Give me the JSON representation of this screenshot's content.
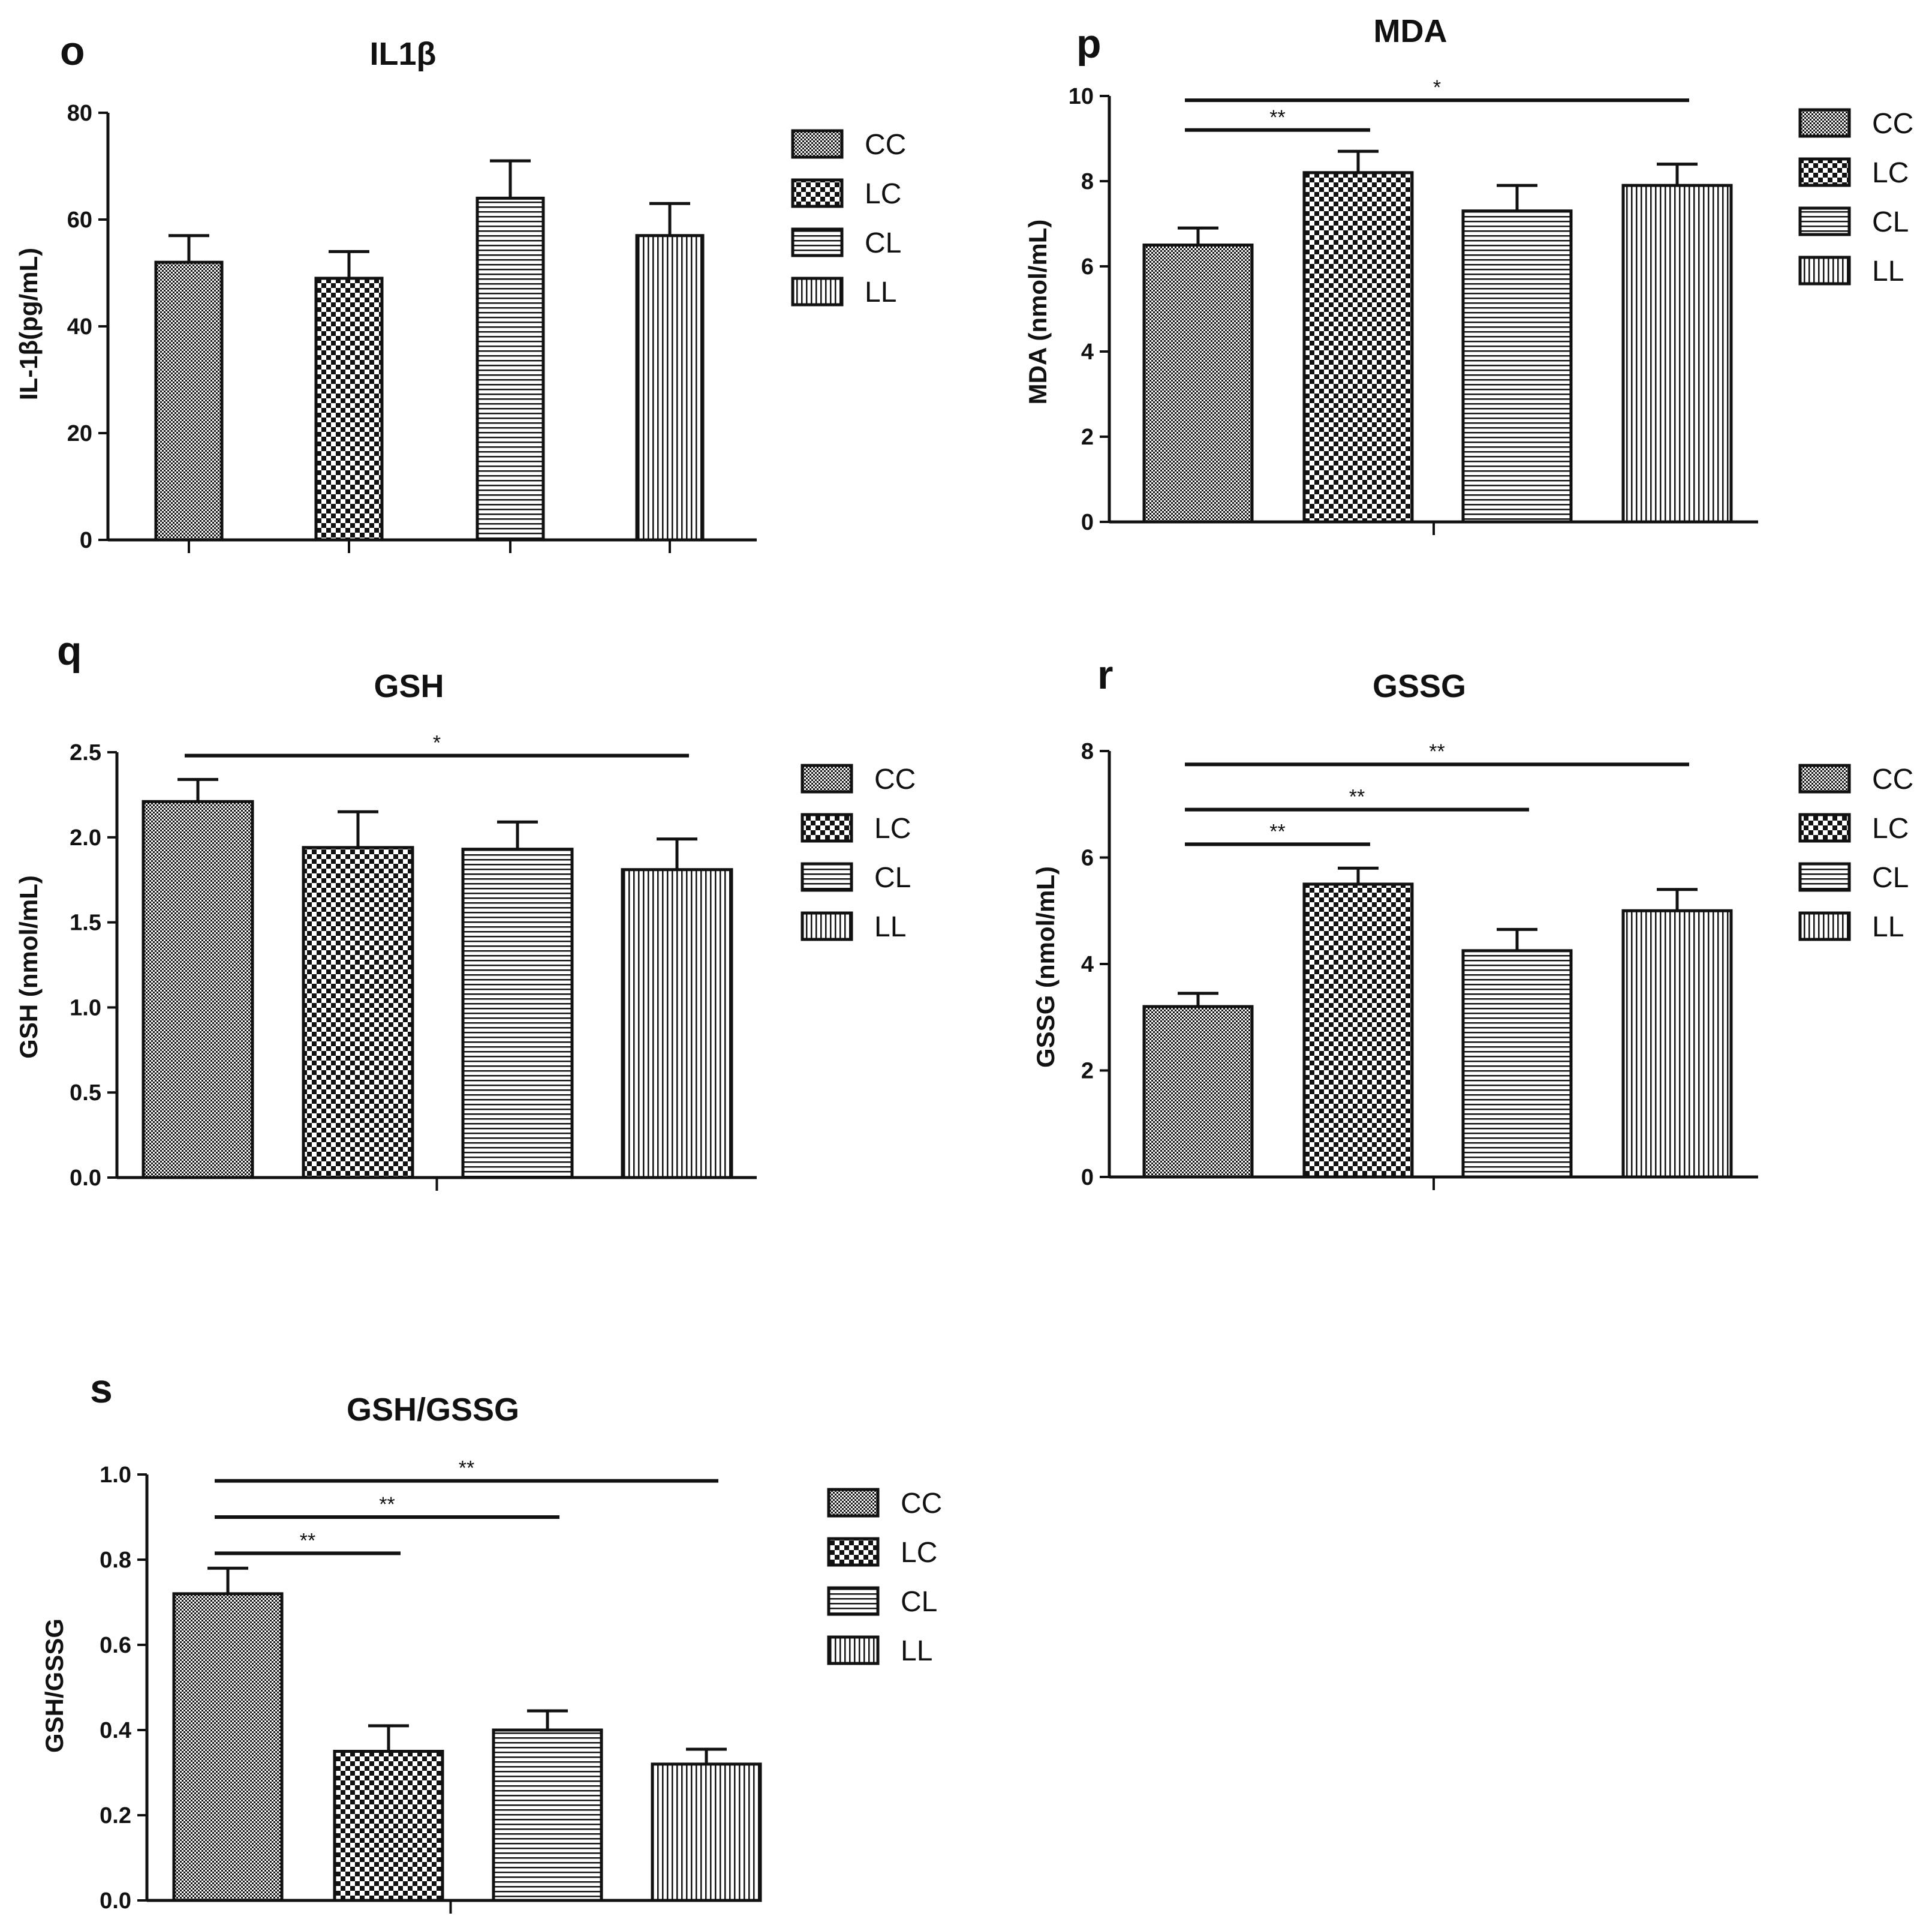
{
  "chart_data": [
    {
      "type": "bar",
      "panel": "o",
      "title": "IL1β",
      "xlabel": "",
      "ylabel": "IL-1β(pg/mL)",
      "ylim": [
        0,
        80
      ],
      "yticks": [
        0,
        20,
        40,
        60,
        80
      ],
      "ytick_labels": [
        "0",
        "20",
        "40",
        "60",
        "80"
      ],
      "categories": [
        "CC",
        "LC",
        "CL",
        "LL"
      ],
      "values": [
        52,
        49,
        64,
        57
      ],
      "errors": [
        5,
        5,
        7,
        6
      ],
      "patterns": [
        "dense",
        "checker",
        "hlines",
        "vlines"
      ],
      "legend": [
        "CC",
        "LC",
        "CL",
        "LL"
      ],
      "significance": []
    },
    {
      "type": "bar",
      "panel": "p",
      "title": "MDA",
      "xlabel": "",
      "ylabel": "MDA (nmol/mL)",
      "ylim": [
        0,
        10
      ],
      "yticks": [
        0,
        2,
        4,
        6,
        8,
        10
      ],
      "ytick_labels": [
        "0",
        "2",
        "4",
        "6",
        "8",
        "10"
      ],
      "categories": [
        "CC",
        "LC",
        "CL",
        "LL"
      ],
      "values": [
        6.5,
        8.2,
        7.3,
        7.9
      ],
      "errors": [
        0.4,
        0.5,
        0.6,
        0.5
      ],
      "patterns": [
        "dense",
        "checker",
        "hlines",
        "vlines"
      ],
      "legend": [
        "CC",
        "LC",
        "CL",
        "LL"
      ],
      "significance": [
        {
          "from": 0,
          "to": 3,
          "y": 9.9,
          "label": "*"
        },
        {
          "from": 0,
          "to": 1,
          "y": 9.2,
          "label": "**"
        }
      ]
    },
    {
      "type": "bar",
      "panel": "q",
      "title": "GSH",
      "xlabel": "",
      "ylabel": "GSH (nmol/mL)",
      "ylim": [
        0,
        2.5
      ],
      "yticks": [
        0,
        0.5,
        1.0,
        1.5,
        2.0,
        2.5
      ],
      "ytick_labels": [
        "0.0",
        "0.5",
        "1.0",
        "1.5",
        "2.0",
        "2.5"
      ],
      "categories": [
        "CC",
        "LC",
        "CL",
        "LL"
      ],
      "values": [
        2.21,
        1.94,
        1.93,
        1.81
      ],
      "errors": [
        0.13,
        0.21,
        0.16,
        0.18
      ],
      "patterns": [
        "dense",
        "checker",
        "hlines",
        "vlines"
      ],
      "legend": [
        "CC",
        "LC",
        "CL",
        "LL"
      ],
      "significance": [
        {
          "from": 0,
          "to": 3,
          "y": 2.48,
          "label": "*"
        }
      ]
    },
    {
      "type": "bar",
      "panel": "r",
      "title": "GSSG",
      "xlabel": "",
      "ylabel": "GSSG (nmol/mL)",
      "ylim": [
        0,
        8
      ],
      "yticks": [
        0,
        2,
        4,
        6,
        8
      ],
      "ytick_labels": [
        "0",
        "2",
        "4",
        "6",
        "8"
      ],
      "categories": [
        "CC",
        "LC",
        "CL",
        "LL"
      ],
      "values": [
        3.2,
        5.5,
        4.25,
        5.0
      ],
      "errors": [
        0.25,
        0.3,
        0.4,
        0.4
      ],
      "patterns": [
        "dense",
        "checker",
        "hlines",
        "vlines"
      ],
      "legend": [
        "CC",
        "LC",
        "CL",
        "LL"
      ],
      "significance": [
        {
          "from": 0,
          "to": 3,
          "y": 7.75,
          "label": "**"
        },
        {
          "from": 0,
          "to": 2,
          "y": 6.9,
          "label": "**"
        },
        {
          "from": 0,
          "to": 1,
          "y": 6.25,
          "label": "**"
        }
      ]
    },
    {
      "type": "bar",
      "panel": "s",
      "title": "GSH/GSSG",
      "xlabel": "",
      "ylabel": "GSH/GSSG",
      "ylim": [
        0,
        1.0
      ],
      "yticks": [
        0,
        0.2,
        0.4,
        0.6,
        0.8,
        1.0
      ],
      "ytick_labels": [
        "0.0",
        "0.2",
        "0.4",
        "0.6",
        "0.8",
        "1.0"
      ],
      "categories": [
        "CC",
        "LC",
        "CL",
        "LL"
      ],
      "values": [
        0.72,
        0.35,
        0.4,
        0.32
      ],
      "errors": [
        0.06,
        0.06,
        0.045,
        0.035
      ],
      "patterns": [
        "dense",
        "checker",
        "hlines",
        "vlines"
      ],
      "legend": [
        "CC",
        "LC",
        "CL",
        "LL"
      ],
      "significance": [
        {
          "from": 0,
          "to": 3,
          "y": 0.985,
          "label": "**"
        },
        {
          "from": 0,
          "to": 2,
          "y": 0.9,
          "label": "**"
        },
        {
          "from": 0,
          "to": 1,
          "y": 0.815,
          "label": "**"
        }
      ]
    }
  ]
}
